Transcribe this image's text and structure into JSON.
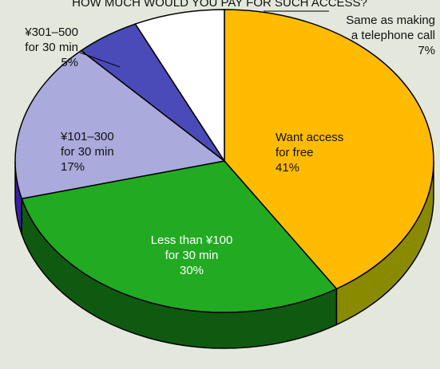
{
  "chart_data": {
    "type": "pie3d",
    "title": "HOW MUCH WOULD YOU PAY FOR SUCH ACCESS?",
    "categories": [
      [
        "Want access",
        "for free"
      ],
      [
        "Less than ¥100",
        "for 30 min"
      ],
      [
        "¥101–300",
        "for 30 min"
      ],
      [
        "¥301–500",
        "for 30 min"
      ],
      [
        "Same as making",
        "a telephone call"
      ]
    ],
    "values": [
      41,
      30,
      17,
      5,
      7
    ],
    "value_labels": [
      "41%",
      "30%",
      "17%",
      "5%",
      "7%"
    ],
    "colors": [
      "#ffbb00",
      "#22aa22",
      "#aaaadd",
      "#4a4ab8",
      "#ffffff"
    ]
  }
}
